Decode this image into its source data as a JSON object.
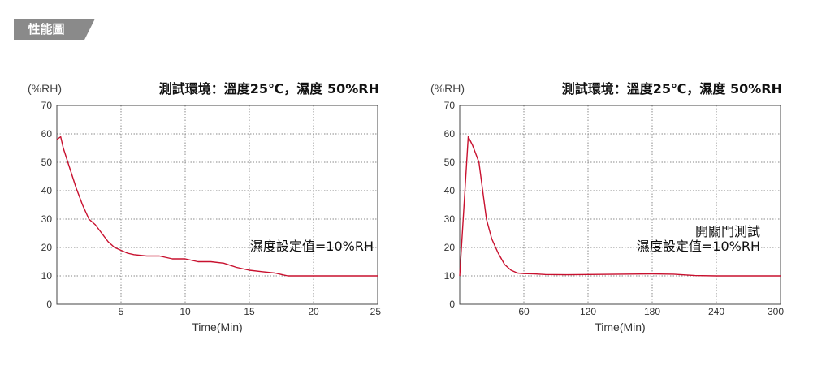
{
  "header": {
    "badge_label": "性能圖"
  },
  "colors": {
    "series": "#c8102e",
    "badge": "#8a8a8a",
    "frame": "#444444"
  },
  "chart_data": [
    {
      "type": "line",
      "title": "測試環境：溫度25℃，濕度 50%RH",
      "unit": "(%RH)",
      "xlabel": "Time(Min)",
      "ylabel": "",
      "xlim": [
        0,
        25
      ],
      "ylim": [
        0,
        70
      ],
      "xticks": [
        5,
        10,
        15,
        20,
        25
      ],
      "yticks": [
        0,
        10,
        20,
        30,
        40,
        50,
        60,
        70
      ],
      "grid": true,
      "annotations": [
        "濕度設定值=10%RH"
      ],
      "series": [
        {
          "x": [
            0,
            0.3,
            0.5,
            1,
            1.5,
            2,
            2.5,
            3,
            3.5,
            4,
            4.5,
            5,
            5.5,
            6,
            7,
            8,
            9,
            10,
            11,
            12,
            13,
            14,
            15,
            16,
            17,
            17.5,
            18,
            19,
            20,
            21,
            22,
            23,
            24,
            25
          ],
          "y": [
            58,
            59,
            55,
            48,
            41,
            35,
            30,
            28,
            25,
            22,
            20,
            19,
            18,
            17.5,
            17,
            17,
            16,
            16,
            15,
            15,
            14.5,
            13,
            12,
            11.5,
            11,
            10.5,
            10,
            10,
            10,
            10,
            10,
            10,
            10,
            10
          ]
        }
      ]
    },
    {
      "type": "line",
      "title": "測試環境：溫度25℃，濕度 50%RH",
      "unit": "(%RH)",
      "xlabel": "Time(Min)",
      "ylabel": "",
      "xlim": [
        0,
        300
      ],
      "ylim": [
        0,
        70
      ],
      "xticks": [
        60,
        120,
        180,
        240,
        300
      ],
      "yticks": [
        0,
        10,
        20,
        30,
        40,
        50,
        60,
        70
      ],
      "grid": true,
      "annotations": [
        "開關門測試",
        "濕度設定值=10%RH"
      ],
      "series": [
        {
          "x": [
            0,
            8,
            12,
            18,
            25,
            30,
            36,
            42,
            48,
            54,
            60,
            70,
            80,
            100,
            120,
            150,
            180,
            200,
            220,
            240,
            260,
            280,
            300
          ],
          "y": [
            10,
            59,
            56,
            50,
            30,
            23,
            18,
            14,
            12,
            11,
            10.8,
            10.7,
            10.5,
            10.4,
            10.5,
            10.6,
            10.7,
            10.6,
            10.1,
            10,
            10,
            10,
            10
          ]
        }
      ]
    }
  ]
}
